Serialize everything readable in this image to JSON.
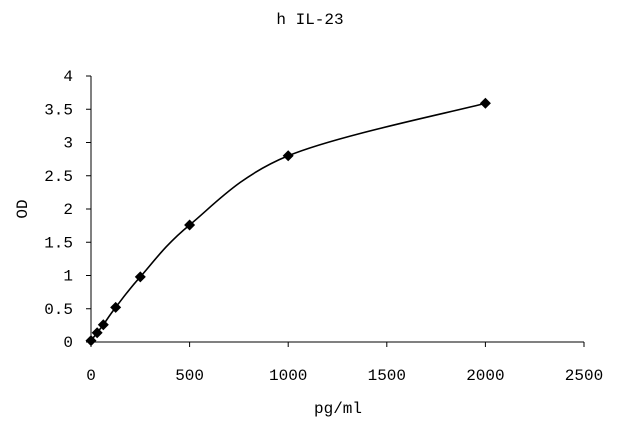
{
  "chart_data": {
    "type": "scatter",
    "title": "h IL-23",
    "xlabel": "pg/ml",
    "ylabel": "OD",
    "xlim": [
      0,
      2500
    ],
    "ylim": [
      0,
      4
    ],
    "xticks": [
      0,
      500,
      1000,
      1500,
      2000,
      2500
    ],
    "yticks": [
      0,
      0.5,
      1,
      1.5,
      2,
      2.5,
      3,
      3.5,
      4
    ],
    "xtick_labels": [
      "0",
      "500",
      "1000",
      "1500",
      "2000",
      "2500"
    ],
    "ytick_labels": [
      "0",
      "0.5",
      "1",
      "1.5",
      "2",
      "2.5",
      "3",
      "3.5",
      "4"
    ],
    "grid": false,
    "legend": false,
    "marker": "diamond",
    "curve": "smooth",
    "series": [
      {
        "x": [
          0,
          31.25,
          62.5,
          125,
          250,
          500,
          1000,
          2000
        ],
        "y": [
          0.02,
          0.14,
          0.26,
          0.52,
          0.98,
          1.76,
          2.8,
          3.59
        ]
      }
    ],
    "colors": {
      "marker": "#000000",
      "line": "#000000",
      "axis": "#000000"
    }
  }
}
